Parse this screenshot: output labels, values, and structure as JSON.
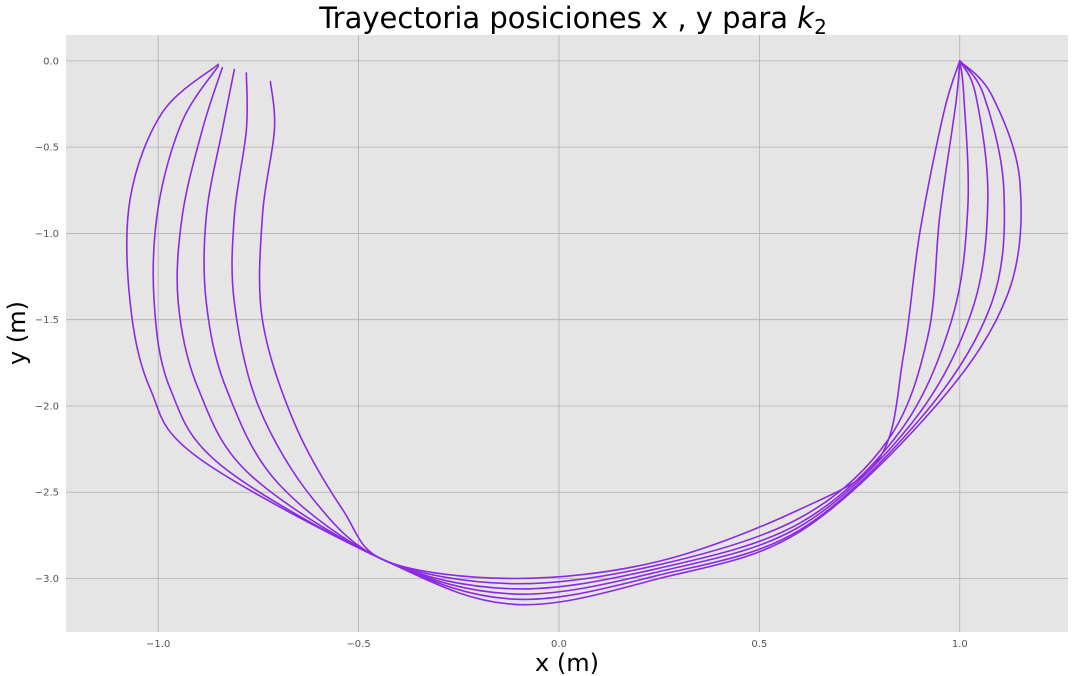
{
  "chart_data": {
    "type": "line",
    "title": "Trayectoria posiciones x , y para ",
    "title_math_symbol": "k",
    "title_math_subscript": "2",
    "xlabel": "x (m)",
    "ylabel": "y (m)",
    "xlim": [
      -1.23,
      1.27
    ],
    "ylim": [
      -3.31,
      0.15
    ],
    "xticks": [
      -1.0,
      -0.5,
      0.0,
      0.5,
      1.0
    ],
    "xtick_labels": [
      "−1.0",
      "−0.5",
      "0.0",
      "0.5",
      "1.0"
    ],
    "yticks": [
      0.0,
      -0.5,
      -1.0,
      -1.5,
      -2.0,
      -2.5,
      -3.0
    ],
    "ytick_labels": [
      "0.0",
      "−0.5",
      "−1.0",
      "−1.5",
      "−2.0",
      "−2.5",
      "−3.0"
    ],
    "grid": true,
    "background": "#e5e5e5",
    "grid_color": "#b0b0b0",
    "line_color": "#8a2be2",
    "series": [
      {
        "values": [
          [
            -0.72,
            -0.12
          ],
          [
            -0.71,
            -0.4
          ],
          [
            -0.74,
            -0.9
          ],
          [
            -0.74,
            -1.5
          ],
          [
            -0.66,
            -2.1
          ],
          [
            -0.54,
            -2.6
          ],
          [
            -0.43,
            -2.9
          ],
          [
            -0.11,
            -3.0
          ],
          [
            0.25,
            -2.9
          ],
          [
            0.6,
            -2.6
          ],
          [
            0.8,
            -2.3
          ],
          [
            0.86,
            -1.7
          ],
          [
            0.9,
            -1.0
          ],
          [
            0.96,
            -0.3
          ],
          [
            1.0,
            0.0
          ]
        ]
      },
      {
        "values": [
          [
            -0.78,
            -0.07
          ],
          [
            -0.78,
            -0.4
          ],
          [
            -0.81,
            -0.9
          ],
          [
            -0.81,
            -1.4
          ],
          [
            -0.75,
            -2.0
          ],
          [
            -0.61,
            -2.55
          ],
          [
            -0.43,
            -2.9
          ],
          [
            -0.11,
            -3.03
          ],
          [
            0.25,
            -2.92
          ],
          [
            0.6,
            -2.65
          ],
          [
            0.82,
            -2.2
          ],
          [
            0.92,
            -1.6
          ],
          [
            0.95,
            -0.9
          ],
          [
            0.99,
            -0.25
          ],
          [
            1.0,
            0.0
          ]
        ]
      },
      {
        "values": [
          [
            -0.81,
            -0.05
          ],
          [
            -0.84,
            -0.4
          ],
          [
            -0.88,
            -0.9
          ],
          [
            -0.88,
            -1.4
          ],
          [
            -0.83,
            -1.9
          ],
          [
            -0.7,
            -2.45
          ],
          [
            -0.43,
            -2.9
          ],
          [
            -0.11,
            -3.06
          ],
          [
            0.25,
            -2.94
          ],
          [
            0.6,
            -2.68
          ],
          [
            0.85,
            -2.15
          ],
          [
            0.98,
            -1.5
          ],
          [
            1.02,
            -0.85
          ],
          [
            1.01,
            -0.2
          ],
          [
            1.0,
            0.0
          ]
        ]
      },
      {
        "values": [
          [
            -0.84,
            -0.04
          ],
          [
            -0.89,
            -0.4
          ],
          [
            -0.94,
            -0.9
          ],
          [
            -0.95,
            -1.4
          ],
          [
            -0.9,
            -1.9
          ],
          [
            -0.77,
            -2.4
          ],
          [
            -0.43,
            -2.9
          ],
          [
            -0.11,
            -3.09
          ],
          [
            0.25,
            -2.96
          ],
          [
            0.6,
            -2.7
          ],
          [
            0.88,
            -2.1
          ],
          [
            1.03,
            -1.45
          ],
          [
            1.07,
            -0.8
          ],
          [
            1.04,
            -0.2
          ],
          [
            1.0,
            0.0
          ]
        ]
      },
      {
        "values": [
          [
            -0.85,
            -0.03
          ],
          [
            -0.94,
            -0.35
          ],
          [
            -1.0,
            -0.85
          ],
          [
            -1.01,
            -1.4
          ],
          [
            -0.97,
            -1.9
          ],
          [
            -0.84,
            -2.35
          ],
          [
            -0.43,
            -2.9
          ],
          [
            -0.11,
            -3.12
          ],
          [
            0.25,
            -2.98
          ],
          [
            0.6,
            -2.72
          ],
          [
            0.91,
            -2.05
          ],
          [
            1.08,
            -1.4
          ],
          [
            1.11,
            -0.75
          ],
          [
            1.06,
            -0.2
          ],
          [
            1.0,
            0.0
          ]
        ]
      },
      {
        "values": [
          [
            -0.85,
            -0.02
          ],
          [
            -0.99,
            -0.3
          ],
          [
            -1.07,
            -0.8
          ],
          [
            -1.07,
            -1.4
          ],
          [
            -1.02,
            -1.9
          ],
          [
            -0.9,
            -2.3
          ],
          [
            -0.43,
            -2.9
          ],
          [
            -0.11,
            -3.15
          ],
          [
            0.25,
            -3.0
          ],
          [
            0.6,
            -2.73
          ],
          [
            0.94,
            -2.0
          ],
          [
            1.12,
            -1.35
          ],
          [
            1.15,
            -0.7
          ],
          [
            1.08,
            -0.2
          ],
          [
            1.0,
            0.0
          ]
        ]
      }
    ]
  }
}
